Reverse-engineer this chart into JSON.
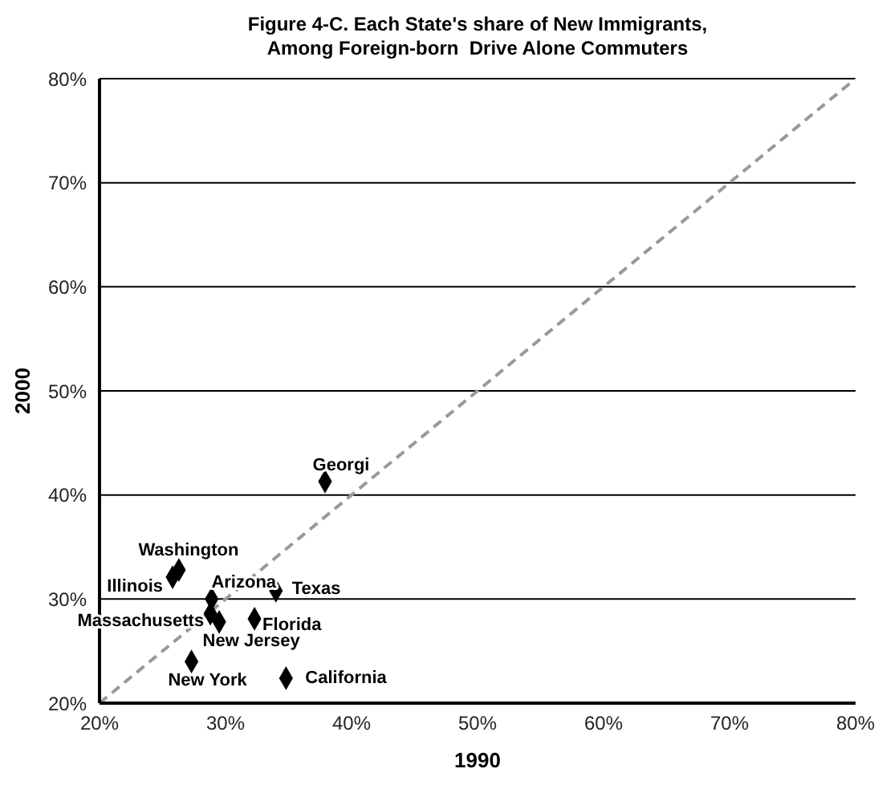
{
  "chart_data": {
    "type": "scatter",
    "title": "Figure 4-C. Each State's share of New Immigrants,\nAmong Foreign-born  Drive Alone Commuters",
    "xlabel": "1990",
    "ylabel": "2000",
    "xlim": [
      20,
      80
    ],
    "ylim": [
      20,
      80
    ],
    "xticks": [
      {
        "value": 20,
        "label": "20%"
      },
      {
        "value": 30,
        "label": "30%"
      },
      {
        "value": 40,
        "label": "40%"
      },
      {
        "value": 50,
        "label": "50%"
      },
      {
        "value": 60,
        "label": "60%"
      },
      {
        "value": 70,
        "label": "70%"
      },
      {
        "value": 80,
        "label": "80%"
      }
    ],
    "yticks": [
      {
        "value": 20,
        "label": "20%"
      },
      {
        "value": 30,
        "label": "30%"
      },
      {
        "value": 40,
        "label": "40%"
      },
      {
        "value": 50,
        "label": "50%"
      },
      {
        "value": 60,
        "label": "60%"
      },
      {
        "value": 70,
        "label": "70%"
      },
      {
        "value": 80,
        "label": "80%"
      }
    ],
    "grid": "y",
    "marker": "diamond",
    "series": [
      {
        "color": "#000000",
        "x": [
          37.9,
          26.3,
          25.8,
          28.9,
          34.0,
          28.8,
          29.5,
          32.3,
          27.3,
          34.8
        ],
        "values": [
          41.3,
          32.8,
          32.1,
          30.0,
          30.8,
          28.6,
          27.8,
          28.1,
          24.0,
          22.4
        ]
      },
      {
        "type": "line",
        "color": "#999999",
        "line_style": "dashed",
        "marker": "none",
        "x": [
          20,
          80
        ],
        "values": [
          20,
          80
        ]
      }
    ],
    "annotations": [
      {
        "text": "Georgi",
        "x": 37.9,
        "y": 41.3
      },
      {
        "text": "Washington",
        "x": 26.3,
        "y": 32.8
      },
      {
        "text": "Illinois",
        "x": 25.8,
        "y": 32.1
      },
      {
        "text": "Arizona",
        "x": 28.9,
        "y": 30.0
      },
      {
        "text": "Texas",
        "x": 34.0,
        "y": 30.8
      },
      {
        "text": "Massachusetts",
        "x": 28.8,
        "y": 28.6
      },
      {
        "text": "New Jersey",
        "x": 29.5,
        "y": 27.8
      },
      {
        "text": "Florida",
        "x": 32.3,
        "y": 28.1
      },
      {
        "text": "New York",
        "x": 27.3,
        "y": 24.0
      },
      {
        "text": "California",
        "x": 34.8,
        "y": 22.4
      }
    ]
  }
}
